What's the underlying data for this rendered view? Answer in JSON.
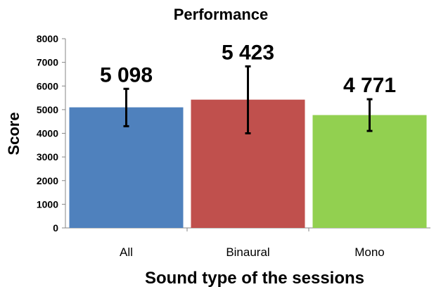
{
  "chart_data": {
    "type": "bar",
    "title": "Performance",
    "xlabel": "Sound type of the sessions",
    "ylabel": "Score",
    "categories": [
      "All",
      "Binaural",
      "Mono"
    ],
    "values": [
      5098,
      5423,
      4771
    ],
    "value_labels": [
      "5 098",
      "5 423",
      "4 771"
    ],
    "error_bars": [
      {
        "low": 4300,
        "high": 5880
      },
      {
        "low": 4000,
        "high": 6830
      },
      {
        "low": 4100,
        "high": 5440
      }
    ],
    "colors": [
      "#4f81bd",
      "#c0504d",
      "#92d050"
    ],
    "ylim": [
      0,
      8000
    ],
    "yticks": [
      0,
      1000,
      2000,
      3000,
      4000,
      5000,
      6000,
      7000,
      8000
    ],
    "grid": false,
    "legend": "none"
  }
}
